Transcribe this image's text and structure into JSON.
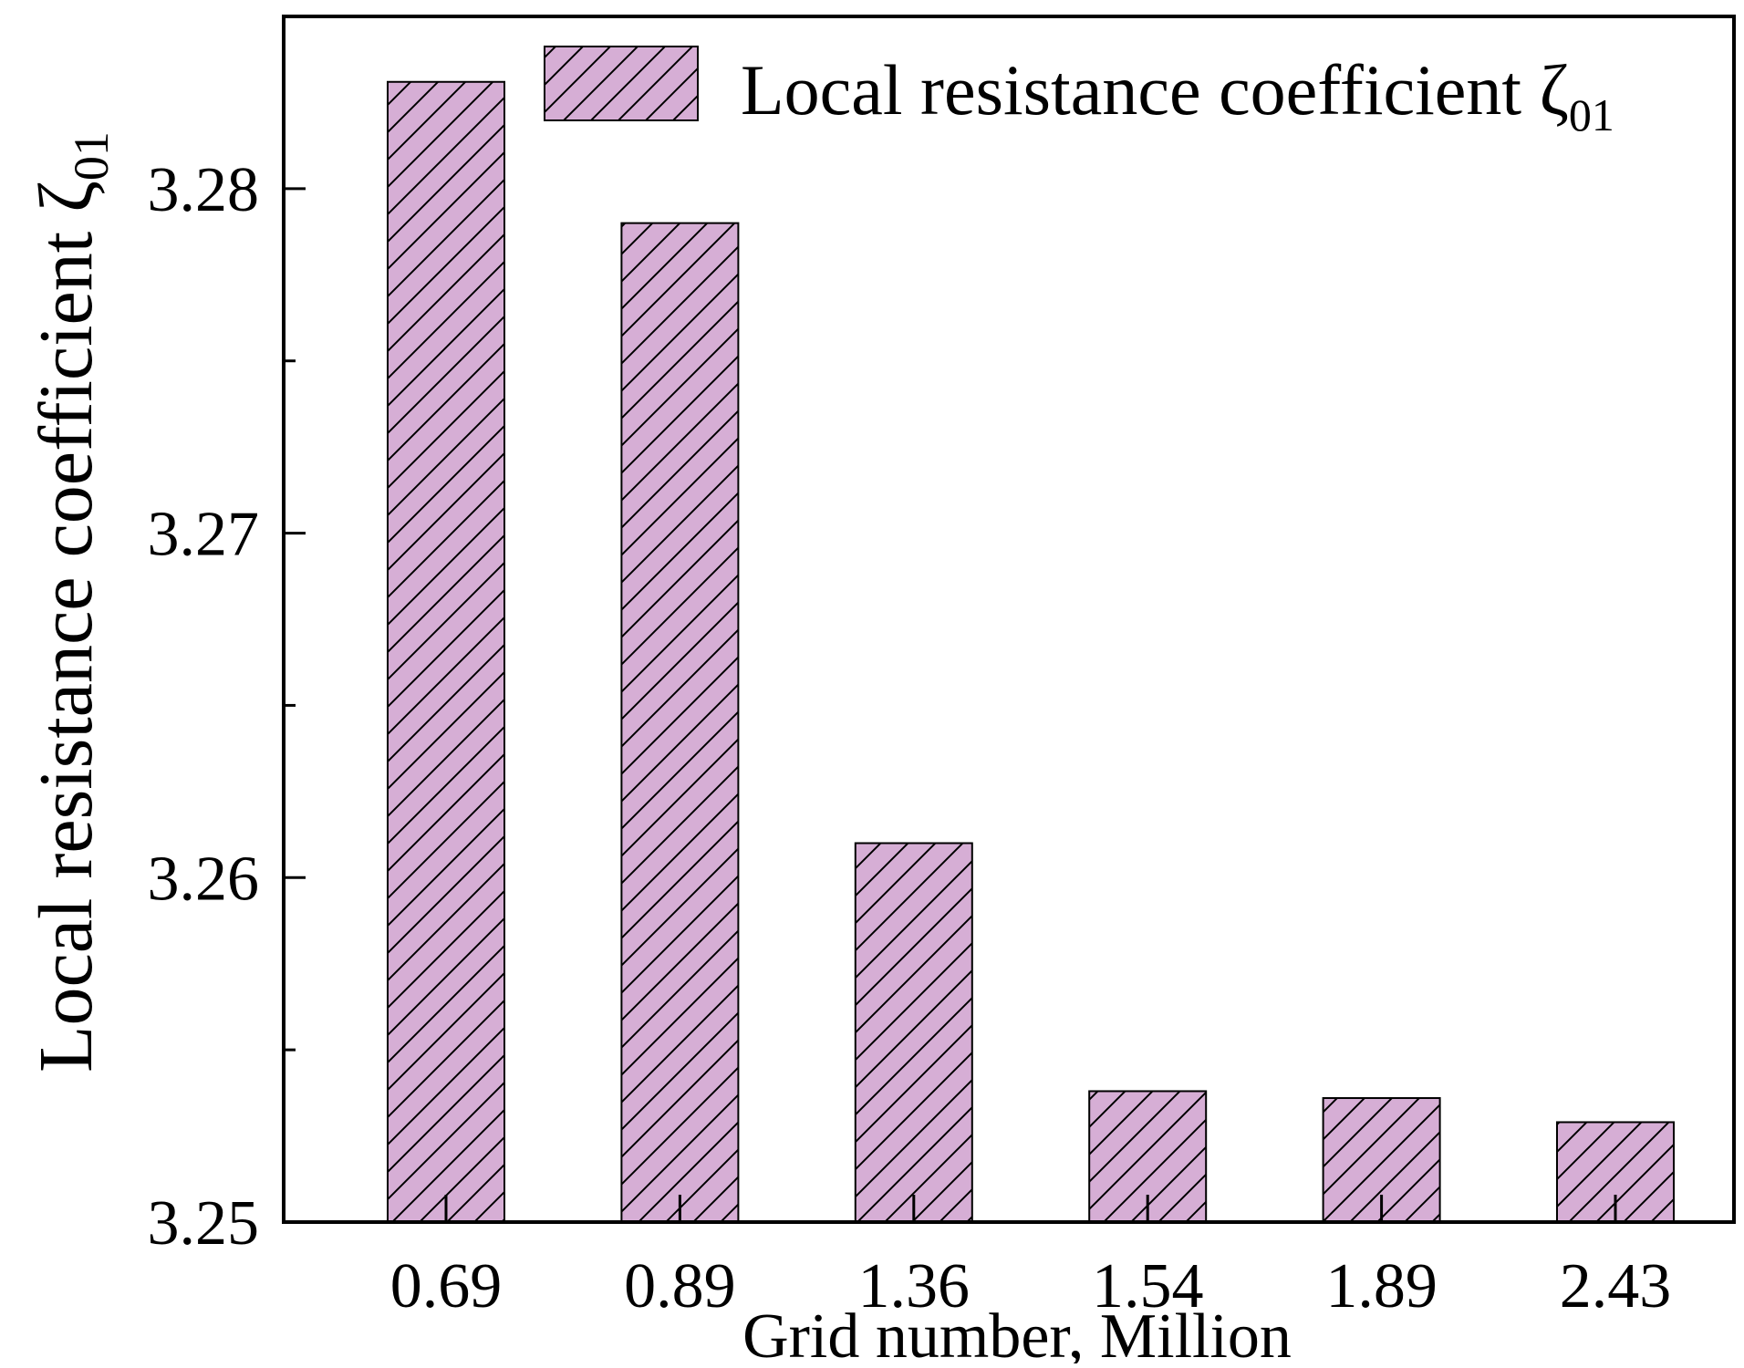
{
  "chart_data": {
    "type": "bar",
    "categories": [
      "0.69",
      "0.89",
      "1.36",
      "1.54",
      "1.89",
      "2.43"
    ],
    "series": [
      {
        "name": "Local resistance coefficient ζ",
        "name_subscript": "01",
        "values": [
          3.2831,
          3.279,
          3.261,
          3.2538,
          3.2536,
          3.2529
        ]
      }
    ],
    "xlabel": "Grid number, Million",
    "ylabel": "Local resistance coefficient ζ",
    "ylabel_subscript": "01",
    "ylim": [
      3.25,
      3.285
    ],
    "yticks": [
      3.25,
      3.26,
      3.27,
      3.28
    ],
    "ytick_labels": [
      "3.25",
      "3.26",
      "3.27",
      "3.28"
    ],
    "minor_ytick_step": 0.005,
    "legend_position": "top-right",
    "grid": false,
    "bar_fill": "#d6aed5",
    "bar_hatch": "diagonal",
    "bar_stroke": "#000000"
  }
}
